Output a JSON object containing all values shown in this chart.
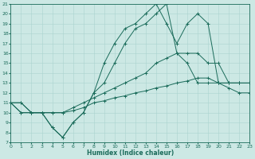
{
  "xlabel": "Humidex (Indice chaleur)",
  "bg_color": "#cce8e4",
  "grid_color": "#aad4cf",
  "line_color": "#1a6b5a",
  "xlim": [
    0,
    23
  ],
  "ylim": [
    7,
    21
  ],
  "xticks": [
    0,
    1,
    2,
    3,
    4,
    5,
    6,
    7,
    8,
    9,
    10,
    11,
    12,
    13,
    14,
    15,
    16,
    17,
    18,
    19,
    20,
    21,
    22,
    23
  ],
  "yticks": [
    7,
    8,
    9,
    10,
    11,
    12,
    13,
    14,
    15,
    16,
    17,
    18,
    19,
    20,
    21
  ],
  "series": [
    {
      "x": [
        0,
        1,
        2,
        3,
        4,
        5,
        6,
        7,
        8,
        9,
        10,
        11,
        12,
        13,
        14,
        15,
        16,
        17,
        18,
        19,
        20,
        21,
        22
      ],
      "y": [
        11,
        11,
        10,
        10,
        8.5,
        7.5,
        9,
        10,
        12,
        15,
        17,
        18.5,
        19,
        20,
        21,
        19,
        17,
        19,
        20,
        19,
        13,
        13,
        13
      ]
    },
    {
      "x": [
        0,
        1,
        2,
        3,
        4,
        5,
        6,
        7,
        8,
        9,
        10,
        11,
        12,
        13,
        14,
        15,
        16,
        17,
        18,
        19,
        20,
        21,
        22,
        23
      ],
      "y": [
        11,
        11,
        10,
        10,
        8.5,
        7.5,
        9,
        10,
        12,
        13,
        15,
        17,
        18.5,
        19,
        20,
        21,
        16,
        15,
        13,
        13,
        13,
        13,
        13,
        13
      ]
    },
    {
      "x": [
        0,
        1,
        2,
        3,
        4,
        5,
        6,
        7,
        8,
        9,
        10,
        11,
        12,
        13,
        14,
        15,
        16,
        17,
        18,
        19,
        20,
        21,
        22,
        23
      ],
      "y": [
        11,
        10,
        10,
        10,
        10,
        10,
        10.5,
        11,
        11.5,
        12,
        12.5,
        13,
        13.5,
        14,
        15,
        15.5,
        16,
        16,
        16,
        15,
        15,
        13,
        13,
        13
      ]
    },
    {
      "x": [
        0,
        1,
        2,
        3,
        4,
        5,
        6,
        7,
        8,
        9,
        10,
        11,
        12,
        13,
        14,
        15,
        16,
        17,
        18,
        19,
        20,
        21,
        22,
        23
      ],
      "y": [
        11,
        10,
        10,
        10,
        10,
        10,
        10.2,
        10.5,
        11,
        11.2,
        11.5,
        11.7,
        12,
        12.2,
        12.5,
        12.7,
        13,
        13.2,
        13.5,
        13.5,
        13,
        12.5,
        12,
        12
      ]
    }
  ]
}
